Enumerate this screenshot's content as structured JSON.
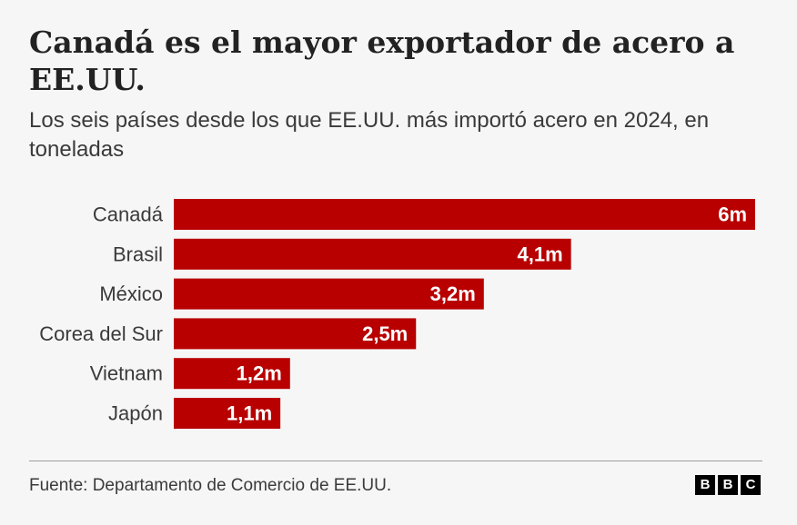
{
  "title": "Canadá es el mayor exportador de acero a EE.UU.",
  "subtitle": "Los seis países desde los que EE.UU. más importó acero en 2024, en toneladas",
  "source": "Fuente: Departamento de Comercio de EE.UU.",
  "logo": [
    "B",
    "B",
    "C"
  ],
  "colors": {
    "bar": "#b80000",
    "background": "#f6f6f6",
    "text": "#222222"
  },
  "chart_data": {
    "type": "bar",
    "orientation": "horizontal",
    "categories": [
      "Canadá",
      "Brasil",
      "México",
      "Corea del Sur",
      "Vietnam",
      "Japón"
    ],
    "values": [
      6,
      4.1,
      3.2,
      2.5,
      1.2,
      1.1
    ],
    "value_labels": [
      "6m",
      "4,1m",
      "3,2m",
      "2,5m",
      "1,2m",
      "1,1m"
    ],
    "xlim": [
      0,
      6
    ],
    "grid": false,
    "legend": false
  }
}
